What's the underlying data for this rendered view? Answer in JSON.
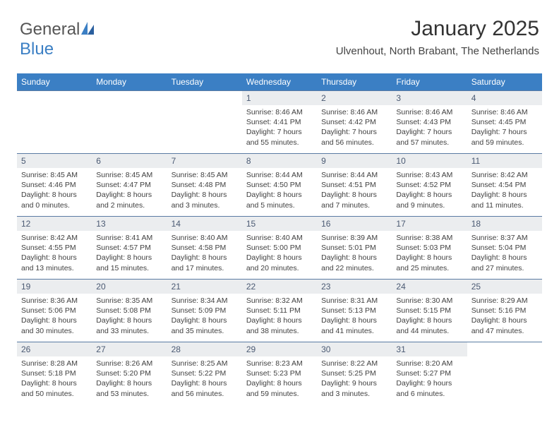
{
  "brand": {
    "part1": "General",
    "part2": "Blue"
  },
  "header": {
    "title": "January 2025",
    "subtitle": "Ulvenhout, North Brabant, The Netherlands"
  },
  "colors": {
    "header_bar": "#3b7fc4",
    "daynum_bg": "#ebedef",
    "daynum_fg": "#4b5a73",
    "rule": "#5a7ba3"
  },
  "daysOfWeek": [
    "Sunday",
    "Monday",
    "Tuesday",
    "Wednesday",
    "Thursday",
    "Friday",
    "Saturday"
  ],
  "weeks": [
    [
      null,
      null,
      null,
      {
        "n": "1",
        "sunrise": "8:46 AM",
        "sunset": "4:41 PM",
        "daylight": "7 hours and 55 minutes."
      },
      {
        "n": "2",
        "sunrise": "8:46 AM",
        "sunset": "4:42 PM",
        "daylight": "7 hours and 56 minutes."
      },
      {
        "n": "3",
        "sunrise": "8:46 AM",
        "sunset": "4:43 PM",
        "daylight": "7 hours and 57 minutes."
      },
      {
        "n": "4",
        "sunrise": "8:46 AM",
        "sunset": "4:45 PM",
        "daylight": "7 hours and 59 minutes."
      }
    ],
    [
      {
        "n": "5",
        "sunrise": "8:45 AM",
        "sunset": "4:46 PM",
        "daylight": "8 hours and 0 minutes."
      },
      {
        "n": "6",
        "sunrise": "8:45 AM",
        "sunset": "4:47 PM",
        "daylight": "8 hours and 2 minutes."
      },
      {
        "n": "7",
        "sunrise": "8:45 AM",
        "sunset": "4:48 PM",
        "daylight": "8 hours and 3 minutes."
      },
      {
        "n": "8",
        "sunrise": "8:44 AM",
        "sunset": "4:50 PM",
        "daylight": "8 hours and 5 minutes."
      },
      {
        "n": "9",
        "sunrise": "8:44 AM",
        "sunset": "4:51 PM",
        "daylight": "8 hours and 7 minutes."
      },
      {
        "n": "10",
        "sunrise": "8:43 AM",
        "sunset": "4:52 PM",
        "daylight": "8 hours and 9 minutes."
      },
      {
        "n": "11",
        "sunrise": "8:42 AM",
        "sunset": "4:54 PM",
        "daylight": "8 hours and 11 minutes."
      }
    ],
    [
      {
        "n": "12",
        "sunrise": "8:42 AM",
        "sunset": "4:55 PM",
        "daylight": "8 hours and 13 minutes."
      },
      {
        "n": "13",
        "sunrise": "8:41 AM",
        "sunset": "4:57 PM",
        "daylight": "8 hours and 15 minutes."
      },
      {
        "n": "14",
        "sunrise": "8:40 AM",
        "sunset": "4:58 PM",
        "daylight": "8 hours and 17 minutes."
      },
      {
        "n": "15",
        "sunrise": "8:40 AM",
        "sunset": "5:00 PM",
        "daylight": "8 hours and 20 minutes."
      },
      {
        "n": "16",
        "sunrise": "8:39 AM",
        "sunset": "5:01 PM",
        "daylight": "8 hours and 22 minutes."
      },
      {
        "n": "17",
        "sunrise": "8:38 AM",
        "sunset": "5:03 PM",
        "daylight": "8 hours and 25 minutes."
      },
      {
        "n": "18",
        "sunrise": "8:37 AM",
        "sunset": "5:04 PM",
        "daylight": "8 hours and 27 minutes."
      }
    ],
    [
      {
        "n": "19",
        "sunrise": "8:36 AM",
        "sunset": "5:06 PM",
        "daylight": "8 hours and 30 minutes."
      },
      {
        "n": "20",
        "sunrise": "8:35 AM",
        "sunset": "5:08 PM",
        "daylight": "8 hours and 33 minutes."
      },
      {
        "n": "21",
        "sunrise": "8:34 AM",
        "sunset": "5:09 PM",
        "daylight": "8 hours and 35 minutes."
      },
      {
        "n": "22",
        "sunrise": "8:32 AM",
        "sunset": "5:11 PM",
        "daylight": "8 hours and 38 minutes."
      },
      {
        "n": "23",
        "sunrise": "8:31 AM",
        "sunset": "5:13 PM",
        "daylight": "8 hours and 41 minutes."
      },
      {
        "n": "24",
        "sunrise": "8:30 AM",
        "sunset": "5:15 PM",
        "daylight": "8 hours and 44 minutes."
      },
      {
        "n": "25",
        "sunrise": "8:29 AM",
        "sunset": "5:16 PM",
        "daylight": "8 hours and 47 minutes."
      }
    ],
    [
      {
        "n": "26",
        "sunrise": "8:28 AM",
        "sunset": "5:18 PM",
        "daylight": "8 hours and 50 minutes."
      },
      {
        "n": "27",
        "sunrise": "8:26 AM",
        "sunset": "5:20 PM",
        "daylight": "8 hours and 53 minutes."
      },
      {
        "n": "28",
        "sunrise": "8:25 AM",
        "sunset": "5:22 PM",
        "daylight": "8 hours and 56 minutes."
      },
      {
        "n": "29",
        "sunrise": "8:23 AM",
        "sunset": "5:23 PM",
        "daylight": "8 hours and 59 minutes."
      },
      {
        "n": "30",
        "sunrise": "8:22 AM",
        "sunset": "5:25 PM",
        "daylight": "9 hours and 3 minutes."
      },
      {
        "n": "31",
        "sunrise": "8:20 AM",
        "sunset": "5:27 PM",
        "daylight": "9 hours and 6 minutes."
      },
      null
    ]
  ],
  "labels": {
    "sunrise": "Sunrise: ",
    "sunset": "Sunset: ",
    "daylight": "Daylight: "
  }
}
